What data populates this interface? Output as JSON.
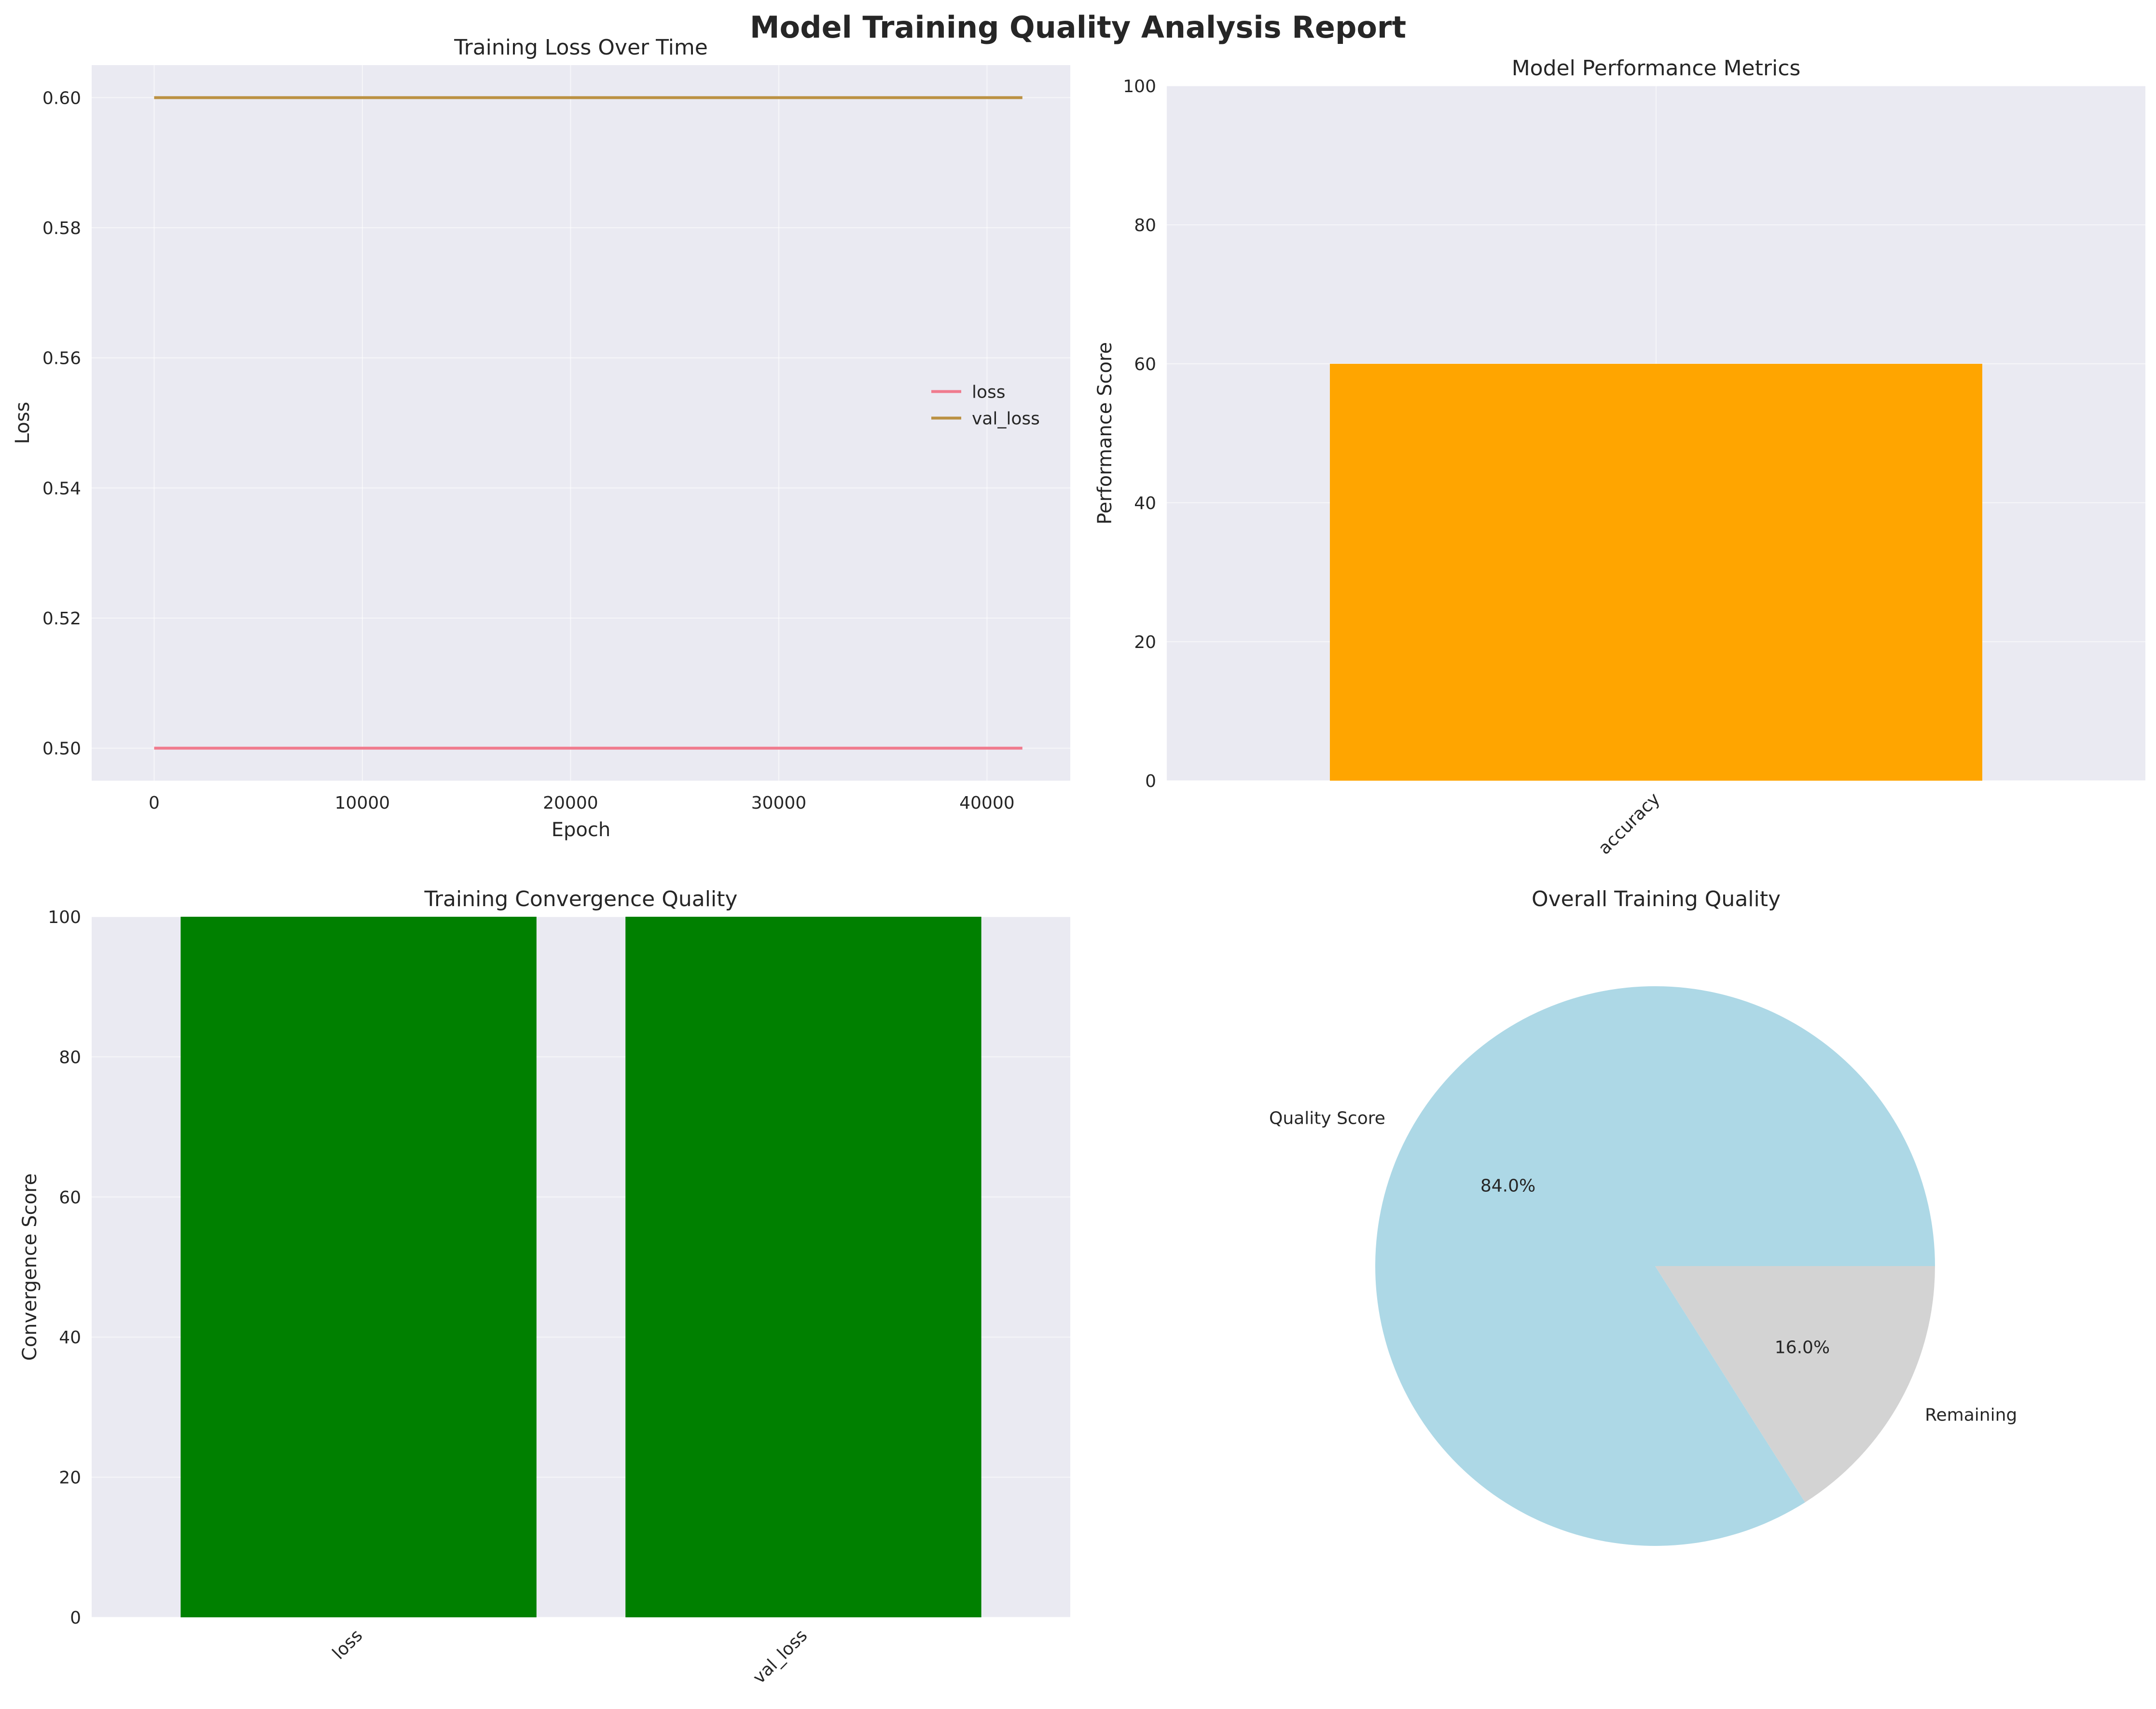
{
  "suptitle": "Model Training Quality Analysis Report",
  "colors": {
    "panel_bg": "#EAEAF2",
    "grid": "#FFFFFF",
    "text": "#262626",
    "tick": "#262626"
  },
  "chart_data": [
    {
      "type": "line",
      "title": "Training Loss Over Time",
      "xlabel": "Epoch",
      "ylabel": "Loss",
      "xlim": [
        -3000,
        44000
      ],
      "ylim": [
        0.495,
        0.605
      ],
      "xticks": [
        0,
        10000,
        20000,
        30000,
        40000
      ],
      "xtick_labels": [
        "0",
        "10000",
        "20000",
        "30000",
        "40000"
      ],
      "yticks": [
        0.5,
        0.52,
        0.54,
        0.56,
        0.58,
        0.6
      ],
      "ytick_labels": [
        "0.50",
        "0.52",
        "0.54",
        "0.56",
        "0.58",
        "0.60"
      ],
      "grid": true,
      "legend": "center-right",
      "series": [
        {
          "name": "loss",
          "color": "#F07B8E",
          "x": [
            0,
            41700
          ],
          "values": [
            0.5,
            0.5
          ]
        },
        {
          "name": "val_loss",
          "color": "#BB9143",
          "x": [
            0,
            41700
          ],
          "values": [
            0.6,
            0.6
          ]
        }
      ]
    },
    {
      "type": "bar",
      "title": "Model Performance Metrics",
      "xlabel": "",
      "ylabel": "Performance Score",
      "ylim": [
        0,
        100
      ],
      "yticks": [
        0,
        20,
        40,
        60,
        80,
        100
      ],
      "ytick_labels": [
        "0",
        "20",
        "40",
        "60",
        "80",
        "100"
      ],
      "grid": true,
      "categories": [
        "accuracy"
      ],
      "values": [
        60
      ],
      "bar_color": "#FFA500"
    },
    {
      "type": "bar",
      "title": "Training Convergence Quality",
      "xlabel": "",
      "ylabel": "Convergence Score",
      "ylim": [
        0,
        100
      ],
      "yticks": [
        0,
        20,
        40,
        60,
        80,
        100
      ],
      "ytick_labels": [
        "0",
        "20",
        "40",
        "60",
        "80",
        "100"
      ],
      "grid": true,
      "categories": [
        "loss",
        "val_loss"
      ],
      "values": [
        100,
        100
      ],
      "bar_color": "#008000"
    },
    {
      "type": "pie",
      "title": "Overall Training Quality",
      "labels": [
        "Quality Score",
        "Remaining"
      ],
      "values": [
        84.0,
        16.0
      ],
      "pct_labels": [
        "84.0%",
        "16.0%"
      ],
      "colors": [
        "#ADD8E6",
        "#D3D3D3"
      ]
    }
  ]
}
